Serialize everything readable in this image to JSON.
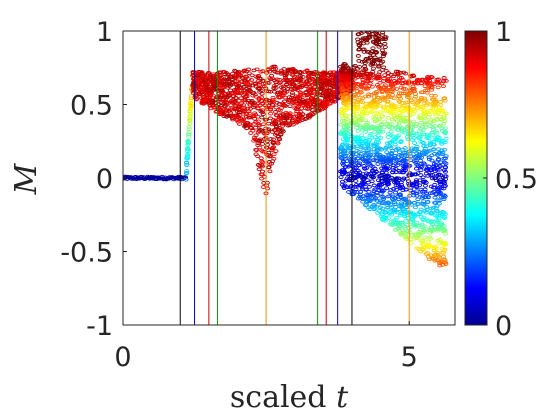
{
  "chart_data": {
    "type": "scatter",
    "xlabel": "scaled t",
    "xlabel_parts": {
      "word": "scaled",
      "var": "t"
    },
    "ylabel": "M",
    "xlim": [
      0,
      5.8
    ],
    "ylim": [
      -1,
      1
    ],
    "xticks": [
      0,
      5
    ],
    "xtick_labels": [
      "0",
      "5"
    ],
    "yticks": [
      -1,
      -0.5,
      0,
      0.5,
      1
    ],
    "ytick_labels": [
      "-1",
      "-0.5",
      "0",
      "0.5",
      "1"
    ],
    "grid": false,
    "colorbar": {
      "colormap": "jet",
      "range": [
        0,
        1
      ],
      "ticks": [
        0,
        0.5,
        1
      ],
      "tick_labels": [
        "0",
        "0.5",
        "1"
      ]
    },
    "vertical_lines": [
      {
        "x": 1.0,
        "color": "#000000"
      },
      {
        "x": 1.25,
        "color": "#0000cc"
      },
      {
        "x": 1.5,
        "color": "#cc0000"
      },
      {
        "x": 1.65,
        "color": "#009900"
      },
      {
        "x": 2.5,
        "color": "#e69500"
      },
      {
        "x": 3.4,
        "color": "#009900"
      },
      {
        "x": 3.55,
        "color": "#cc0000"
      },
      {
        "x": 3.75,
        "color": "#0000cc"
      },
      {
        "x": 4.0,
        "color": "#000000"
      },
      {
        "x": 5.0,
        "color": "#e69500"
      }
    ],
    "series": [
      {
        "marker_color": "value-mapped (jet)",
        "segments": [
          {
            "x_range": [
              0,
              1.1
            ],
            "y_center": 0.0,
            "y_spread": 0.01,
            "color_value": 0.03
          },
          {
            "x_range": [
              1.1,
              1.22
            ],
            "y_center": 0.2,
            "y_spread": 0.2,
            "color_value": 0.45
          },
          {
            "x_range": [
              1.22,
              4.0
            ],
            "y_upper": 0.78,
            "y_lower_min": -0.05,
            "color_value": 0.98
          },
          {
            "x_range": [
              3.8,
              5.65
            ],
            "y_upper": 0.72,
            "y_lower": -0.65,
            "color_value_range": [
              0.05,
              0.9
            ]
          }
        ]
      }
    ]
  }
}
